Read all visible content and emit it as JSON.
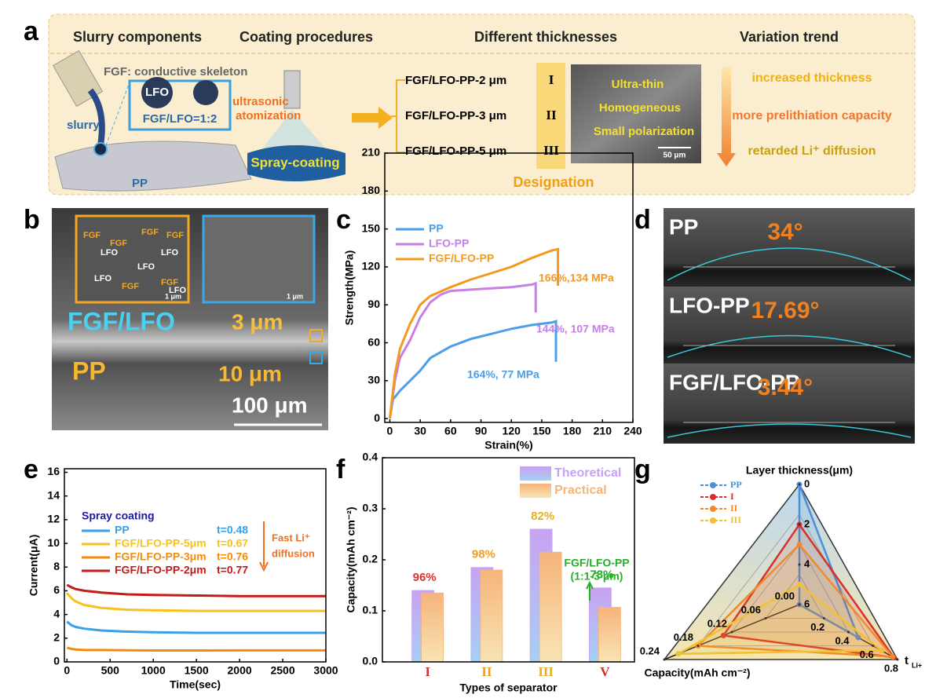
{
  "panel_labels": [
    "a",
    "b",
    "c",
    "d",
    "e",
    "f",
    "g"
  ],
  "panel_a": {
    "headers": [
      "Slurry components",
      "Coating procedures",
      "Different thicknesses",
      "Variation trend"
    ],
    "skeleton": "FGF: conductive skeleton",
    "particle": "LFO",
    "ratio": "FGF/LFO=1:2",
    "slurry": "slurry",
    "substrate": "PP",
    "atomization": [
      "ultrasonic",
      "atomization"
    ],
    "spray": "Spray-coating",
    "samples": [
      "FGF/LFO-PP-2 μm",
      "FGF/LFO-PP-3 μm",
      "FGF/LFO-PP-5 μm"
    ],
    "numerals": [
      "I",
      "II",
      "III"
    ],
    "designation": "Designation",
    "sem_text": [
      "Ultra-thin",
      "Homogeneous",
      "Small polarization"
    ],
    "sem_scale": "50 μm",
    "trends": [
      "increased thickness",
      "more prelithiation capacity",
      "retarded Li⁺ diffusion"
    ]
  },
  "panel_b": {
    "layer": "FGF/LFO",
    "layer_thickness": "3 μm",
    "substrate": "PP",
    "substrate_thickness": "10 μm",
    "scale": "100 μm",
    "inset_labels": [
      "FGF",
      "FGF",
      "LFO",
      "FGF",
      "LFO",
      "LFO",
      "FGF",
      "FGF",
      "LFO",
      "FGF",
      "LFO"
    ],
    "inset_scales": [
      "1 μm",
      "1 μm"
    ]
  },
  "panel_d": {
    "samples": [
      "PP",
      "LFO-PP",
      "FGF/LFO-PP"
    ],
    "angles": [
      "34°",
      "17.69°",
      "3.44°"
    ]
  },
  "chart_data": [
    {
      "type": "line",
      "y_label": "Strength(MPa)",
      "x_label": "Strain(%)",
      "xlim": [
        -5,
        240
      ],
      "ylim": [
        -3,
        210
      ],
      "xticks": [
        0,
        30,
        60,
        90,
        120,
        150,
        180,
        210,
        240
      ],
      "yticks": [
        0,
        30,
        60,
        90,
        120,
        150,
        180,
        210
      ],
      "series": [
        {
          "name": "PP",
          "color": "#4a9fe8",
          "x": [
            0,
            3,
            10,
            20,
            30,
            40,
            60,
            80,
            100,
            120,
            140,
            160,
            164,
            164
          ],
          "values": [
            0,
            15,
            22,
            30,
            38,
            48,
            57,
            63,
            67,
            71,
            74,
            76,
            77,
            45
          ]
        },
        {
          "name": "LFO-PP",
          "color": "#c77ee8",
          "x": [
            0,
            5,
            10,
            20,
            30,
            40,
            50,
            60,
            80,
            100,
            120,
            140,
            144,
            144
          ],
          "values": [
            0,
            30,
            48,
            62,
            80,
            92,
            98,
            101,
            102,
            103,
            104,
            106,
            107,
            84
          ]
        },
        {
          "name": "FGF/LFO-PP",
          "color": "#f39a1e",
          "x": [
            0,
            5,
            10,
            20,
            30,
            40,
            60,
            80,
            100,
            120,
            140,
            160,
            166,
            166
          ],
          "values": [
            0,
            35,
            55,
            75,
            90,
            97,
            104,
            110,
            115,
            120,
            127,
            133,
            134,
            105
          ]
        }
      ],
      "annotations": [
        "166%,134 MPa",
        "144%, 107 MPa",
        "164%, 77 MPa"
      ]
    },
    {
      "type": "line",
      "y_label": "Current(μA)",
      "x_label": "Time(sec)",
      "xlim": [
        -30,
        3000
      ],
      "ylim": [
        0,
        16.3
      ],
      "xticks": [
        0,
        500,
        1000,
        1500,
        2000,
        2500,
        3000
      ],
      "yticks": [
        0,
        2,
        4,
        6,
        8,
        10,
        12,
        14,
        16
      ],
      "x": [
        0,
        50,
        100,
        200,
        400,
        700,
        1000,
        1500,
        2000,
        2500,
        3000
      ],
      "legend_title": "Spray coating",
      "series": [
        {
          "name": "PP",
          "t": "t=0.48",
          "color": "#3a9fe8",
          "values": [
            3.4,
            3.1,
            2.95,
            2.8,
            2.65,
            2.55,
            2.5,
            2.45,
            2.45,
            2.45,
            2.45
          ]
        },
        {
          "name": "FGF/LFO-PP-5μm",
          "t": "t=0.67",
          "color": "#f7c21b",
          "values": [
            5.8,
            5.4,
            5.1,
            4.8,
            4.55,
            4.4,
            4.35,
            4.3,
            4.3,
            4.3,
            4.3
          ]
        },
        {
          "name": "FGF/LFO-PP-3μm",
          "t": "t=0.76",
          "color": "#f28c0a",
          "values": [
            1.2,
            1.1,
            1.05,
            1,
            1,
            0.98,
            0.96,
            0.96,
            0.97,
            0.97,
            0.97
          ]
        },
        {
          "name": "FGF/LFO-PP-2μm",
          "t": "t=0.77",
          "color": "#c41a1a",
          "values": [
            6.5,
            6.3,
            6.15,
            6,
            5.85,
            5.7,
            5.65,
            5.6,
            5.55,
            5.55,
            5.55
          ]
        }
      ],
      "annotations": [
        "Fast Li⁺",
        "diffusion"
      ]
    },
    {
      "type": "bar",
      "y_label": "Capacity(mAh cm⁻²)",
      "x_label": "Types of separator",
      "ylim": [
        0,
        0.4
      ],
      "yticks": [
        {
          "value": 0,
          "label": "0.0"
        },
        0.1,
        0.2,
        0.3,
        0.4
      ],
      "categories": [
        "I",
        "II",
        "III",
        "V"
      ],
      "category_colors": [
        "#e0302a",
        "#e8a020",
        "#e8b020",
        "#d03020"
      ],
      "series": [
        {
          "name": "Theoretical",
          "color": "#c8a2f2",
          "values": [
            0.14,
            0.185,
            0.26,
            0.145
          ]
        },
        {
          "name": "Practical",
          "color": "#f6b47a",
          "values": [
            0.135,
            0.18,
            0.215,
            0.107
          ]
        }
      ],
      "annotations": [
        "96%",
        "98%",
        "82%",
        "73%"
      ],
      "annotation_colors": [
        "#e0302a",
        "#f0a020",
        "#e8b020",
        "#22b024"
      ],
      "note": [
        "FGF/LFO-PP",
        "(1:1-3 μm)"
      ]
    },
    {
      "type": "radar",
      "axes": [
        {
          "label": "Layer thickness(μm)",
          "lim": [
            6,
            0
          ],
          "ticks": [
            0,
            2,
            4,
            6
          ]
        },
        {
          "label": "t",
          "label_sub": "Li+",
          "lim": [
            0,
            0.8
          ],
          "ticks": [
            0.2,
            0.4,
            0.6,
            0.8
          ]
        },
        {
          "label": "Capacity(mAh cm⁻²)",
          "lim": [
            0,
            0.24
          ],
          "ticks": [
            {
              "value": 0,
              "label": "0.00"
            },
            0.06,
            0.12,
            0.18,
            0.24
          ]
        }
      ],
      "series": [
        {
          "name": "PP",
          "color": "#4a90d9",
          "values": [
            0,
            0.48,
            0
          ]
        },
        {
          "name": "I",
          "color": "#d9302a",
          "values": [
            2,
            0.77,
            0.135
          ]
        },
        {
          "name": "II",
          "color": "#f08a2a",
          "values": [
            3,
            0.76,
            0.18
          ]
        },
        {
          "name": "III",
          "color": "#f2c030",
          "values": [
            5,
            0.67,
            0.215
          ]
        }
      ]
    }
  ]
}
